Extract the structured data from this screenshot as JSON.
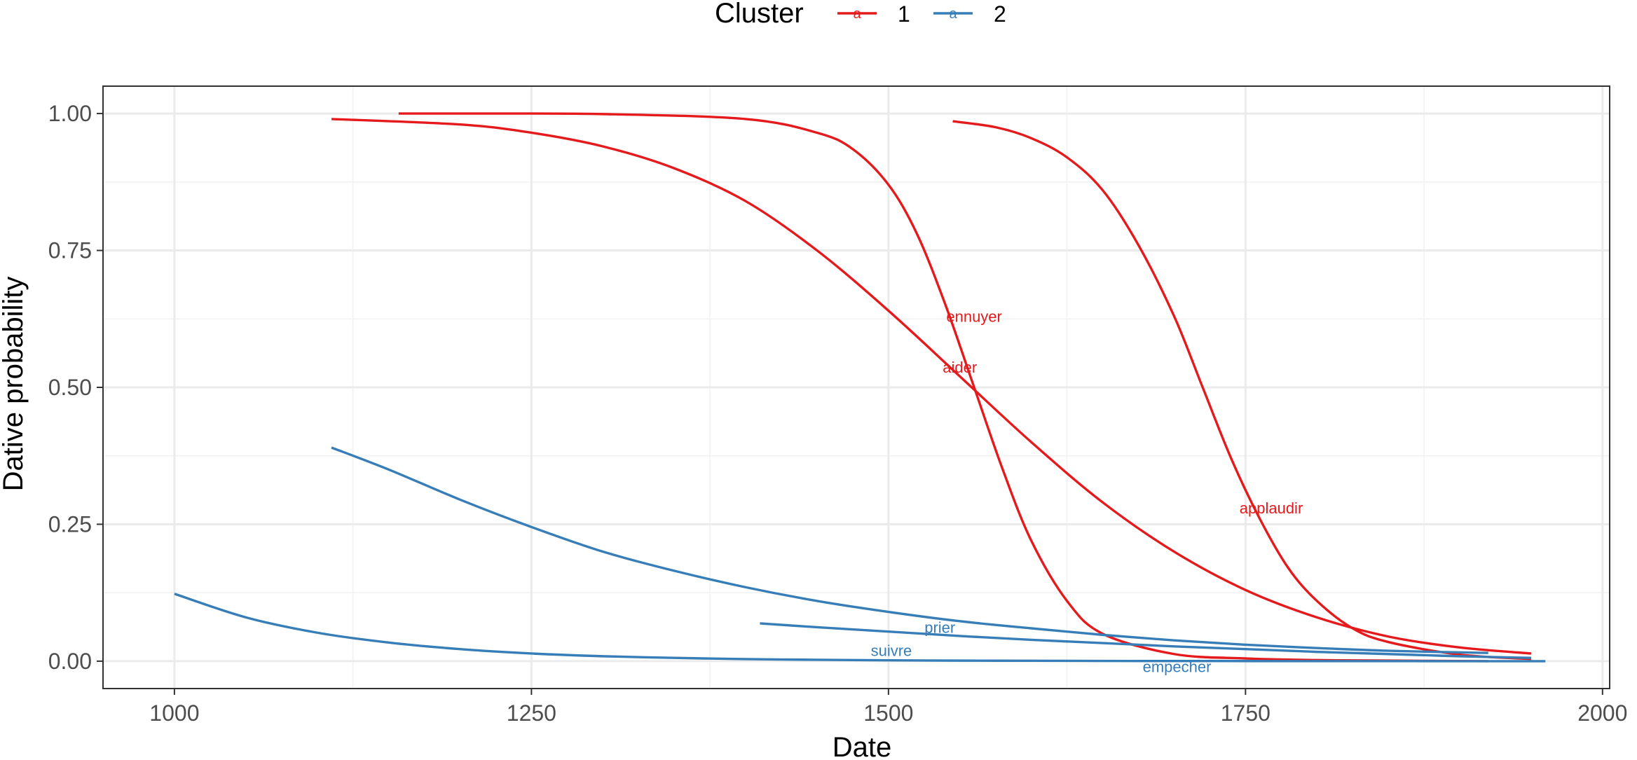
{
  "chart_data": {
    "type": "line",
    "xlabel": "Date",
    "ylabel": "Dative probability",
    "xlim": [
      950,
      2005
    ],
    "ylim": [
      -0.05,
      1.05
    ],
    "x_ticks": [
      1000,
      1250,
      1500,
      1750,
      2000
    ],
    "x_tick_labels": [
      "1000",
      "1250",
      "1500",
      "1750",
      "2000"
    ],
    "y_ticks": [
      0,
      0.25,
      0.5,
      0.75,
      1
    ],
    "y_tick_labels": [
      "0.00",
      "0.25",
      "0.50",
      "0.75",
      "1.00"
    ],
    "grid": true,
    "legend": {
      "title": "Cluster",
      "placement": "top",
      "items": [
        {
          "label": "1",
          "color": "#E41A1C"
        },
        {
          "label": "2",
          "color": "#377EB8"
        }
      ]
    },
    "series": [
      {
        "label": "ennuyer",
        "cluster": "1",
        "color": "#E41A1C",
        "x": [
          1157,
          1200,
          1300,
          1400,
          1450,
          1475,
          1500,
          1520,
          1540,
          1560,
          1580,
          1600,
          1625,
          1650,
          1700,
          1750,
          1800,
          1850,
          1920
        ],
        "y": [
          1.0,
          1.0,
          0.999,
          0.99,
          0.965,
          0.935,
          0.87,
          0.78,
          0.65,
          0.5,
          0.35,
          0.22,
          0.11,
          0.05,
          0.013,
          0.005,
          0.002,
          0.001,
          0.0
        ]
      },
      {
        "label": "aider",
        "cluster": "1",
        "color": "#E41A1C",
        "x": [
          1110,
          1200,
          1250,
          1300,
          1350,
          1400,
          1450,
          1500,
          1550,
          1600,
          1650,
          1700,
          1750,
          1800,
          1850,
          1900,
          1950
        ],
        "y": [
          0.99,
          0.98,
          0.965,
          0.94,
          0.9,
          0.84,
          0.75,
          0.64,
          0.52,
          0.4,
          0.29,
          0.2,
          0.13,
          0.08,
          0.045,
          0.025,
          0.014
        ]
      },
      {
        "label": "applaudir",
        "cluster": "1",
        "color": "#E41A1C",
        "x": [
          1545,
          1575,
          1600,
          1625,
          1650,
          1675,
          1700,
          1720,
          1740,
          1760,
          1780,
          1800,
          1825,
          1850,
          1900,
          1950
        ],
        "y": [
          0.986,
          0.975,
          0.955,
          0.92,
          0.86,
          0.76,
          0.63,
          0.5,
          0.37,
          0.26,
          0.17,
          0.11,
          0.06,
          0.035,
          0.012,
          0.004
        ]
      },
      {
        "label": "prier",
        "cluster": "2",
        "color": "#377EB8",
        "x": [
          1110,
          1150,
          1200,
          1250,
          1300,
          1350,
          1400,
          1450,
          1500,
          1550,
          1600,
          1650,
          1700,
          1750,
          1800,
          1850,
          1920
        ],
        "y": [
          0.39,
          0.35,
          0.295,
          0.245,
          0.2,
          0.165,
          0.135,
          0.11,
          0.09,
          0.073,
          0.06,
          0.048,
          0.038,
          0.03,
          0.024,
          0.019,
          0.015
        ]
      },
      {
        "label": "suivre",
        "cluster": "2",
        "color": "#377EB8",
        "x": [
          1000,
          1050,
          1100,
          1150,
          1200,
          1250,
          1300,
          1350,
          1400,
          1450,
          1500,
          1550,
          1600,
          1650,
          1700,
          1750,
          1800,
          1850,
          1900,
          1960
        ],
        "y": [
          0.123,
          0.08,
          0.052,
          0.034,
          0.022,
          0.014,
          0.009,
          0.006,
          0.0038,
          0.0025,
          0.0016,
          0.001,
          0.0007,
          0.0004,
          0.0003,
          0.0002,
          0.0001,
          0.0001,
          0.0,
          0.0
        ]
      },
      {
        "label": "empecher",
        "cluster": "2",
        "color": "#377EB8",
        "x": [
          1410,
          1450,
          1500,
          1550,
          1600,
          1650,
          1700,
          1750,
          1800,
          1850,
          1900,
          1950
        ],
        "y": [
          0.069,
          0.062,
          0.054,
          0.046,
          0.039,
          0.033,
          0.027,
          0.022,
          0.017,
          0.013,
          0.009,
          0.006
        ]
      }
    ],
    "annotations": [
      {
        "text": "ennuyer",
        "x": 1560,
        "y": 0.63,
        "color": "#E41A1C"
      },
      {
        "text": "aider",
        "x": 1550,
        "y": 0.537,
        "color": "#E41A1C"
      },
      {
        "text": "applaudir",
        "x": 1768,
        "y": 0.28,
        "color": "#E41A1C"
      },
      {
        "text": "prier",
        "x": 1536,
        "y": 0.062,
        "color": "#377EB8"
      },
      {
        "text": "suivre",
        "x": 1502,
        "y": 0.02,
        "color": "#377EB8"
      },
      {
        "text": "empecher",
        "x": 1702,
        "y": -0.01,
        "color": "#377EB8"
      }
    ]
  }
}
